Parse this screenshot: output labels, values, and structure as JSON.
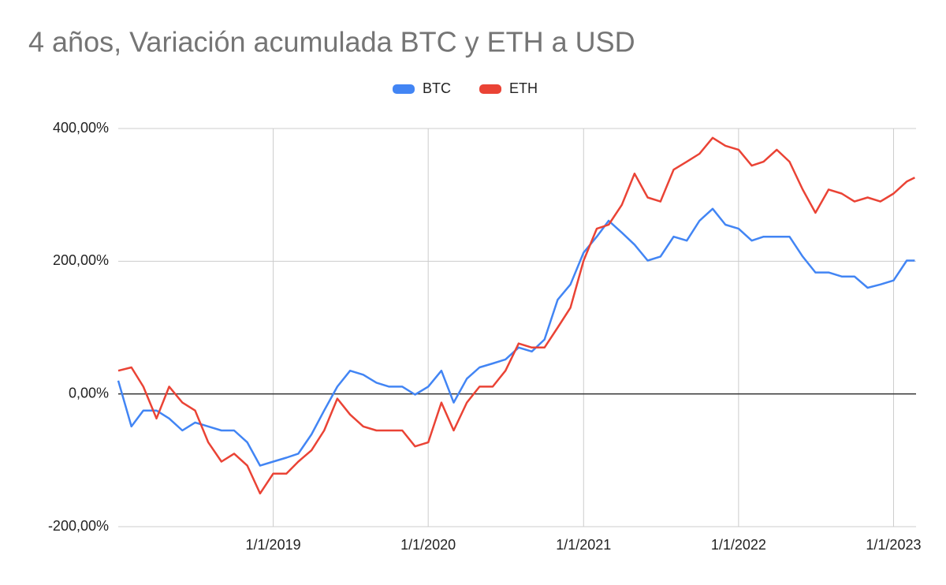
{
  "chart_data": {
    "type": "line",
    "title": "4 años, Variación acumulada BTC y ETH a USD",
    "x": [
      "2018-01-01",
      "2018-02-01",
      "2018-03-01",
      "2018-04-01",
      "2018-05-01",
      "2018-06-01",
      "2018-07-01",
      "2018-08-01",
      "2018-09-01",
      "2018-10-01",
      "2018-11-01",
      "2018-12-01",
      "2019-01-01",
      "2019-02-01",
      "2019-03-01",
      "2019-04-01",
      "2019-05-01",
      "2019-06-01",
      "2019-07-01",
      "2019-08-01",
      "2019-09-01",
      "2019-10-01",
      "2019-11-01",
      "2019-12-01",
      "2020-01-01",
      "2020-02-01",
      "2020-03-01",
      "2020-04-01",
      "2020-05-01",
      "2020-06-01",
      "2020-07-01",
      "2020-08-01",
      "2020-09-01",
      "2020-10-01",
      "2020-11-01",
      "2020-12-01",
      "2021-01-01",
      "2021-02-01",
      "2021-03-01",
      "2021-04-01",
      "2021-05-01",
      "2021-06-01",
      "2021-07-01",
      "2021-08-01",
      "2021-09-01",
      "2021-10-01",
      "2021-11-01",
      "2021-12-01",
      "2022-01-01",
      "2022-02-01",
      "2022-03-01",
      "2022-04-01",
      "2022-05-01",
      "2022-06-01",
      "2022-07-01",
      "2022-08-01",
      "2022-09-01",
      "2022-10-01",
      "2022-11-01",
      "2022-12-01",
      "2023-01-01",
      "2023-02-01",
      "2023-02-20"
    ],
    "series": [
      {
        "name": "BTC",
        "color": "#4285f4",
        "values": [
          20,
          -49,
          -25,
          -25,
          -37,
          -55,
          -43,
          -49,
          -55,
          -55,
          -73,
          -108,
          -102,
          -96,
          -90,
          -61,
          -25,
          11,
          35,
          29,
          17,
          11,
          11,
          -1,
          11,
          35,
          -13,
          23,
          40,
          46,
          52,
          70,
          64,
          82,
          142,
          165,
          213,
          237,
          261,
          243,
          225,
          201,
          207,
          237,
          231,
          261,
          279,
          255,
          249,
          231,
          237,
          237,
          237,
          207,
          183,
          183,
          177,
          177,
          160,
          165,
          171,
          201,
          201
        ]
      },
      {
        "name": "ETH",
        "color": "#ea4335",
        "values": [
          35,
          40,
          11,
          -37,
          11,
          -13,
          -25,
          -73,
          -102,
          -90,
          -108,
          -150,
          -120,
          -120,
          -102,
          -85,
          -55,
          -7,
          -31,
          -49,
          -55,
          -55,
          -55,
          -79,
          -73,
          -13,
          -55,
          -13,
          11,
          11,
          35,
          76,
          70,
          70,
          100,
          130,
          201,
          249,
          255,
          285,
          332,
          296,
          290,
          338,
          350,
          362,
          386,
          374,
          368,
          344,
          350,
          368,
          350,
          308,
          273,
          308,
          302,
          290,
          296,
          290,
          302,
          320,
          326
        ]
      }
    ],
    "xlim": [
      "2018-01-01",
      "2023-02-23"
    ],
    "xticks": [
      {
        "value": "2019-01-01",
        "label": "1/1/2019"
      },
      {
        "value": "2020-01-01",
        "label": "1/1/2020"
      },
      {
        "value": "2021-01-01",
        "label": "1/1/2021"
      },
      {
        "value": "2022-01-01",
        "label": "1/1/2022"
      },
      {
        "value": "2023-01-01",
        "label": "1/1/2023"
      }
    ],
    "ylim": [
      -200,
      400
    ],
    "yticks": [
      {
        "value": -200,
        "label": "-200,00%"
      },
      {
        "value": 0,
        "label": "0,00%"
      },
      {
        "value": 200,
        "label": "200,00%"
      },
      {
        "value": 400,
        "label": "400,00%"
      }
    ],
    "grid": true,
    "legend": "top"
  }
}
